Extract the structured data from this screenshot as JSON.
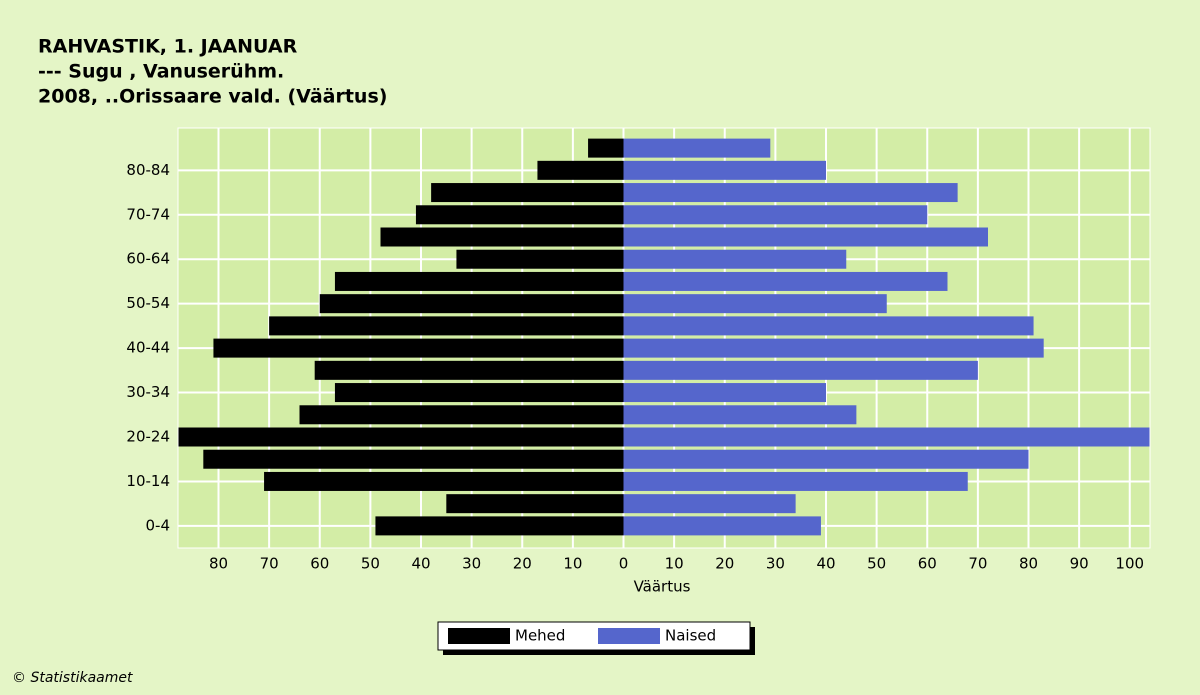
{
  "chart_data": {
    "type": "bar",
    "orientation": "horizontal",
    "title": [
      "RAHVASTIK, 1. JAANUAR",
      "--- Sugu , Vanuserühm.",
      "2008, ..Orissaare vald. (Väärtus)"
    ],
    "x_label": "Väärtus",
    "source": "© Statistikaamet",
    "categories": [
      "0-4",
      null,
      "10-14",
      null,
      "20-24",
      null,
      "30-34",
      null,
      "40-44",
      null,
      "50-54",
      null,
      "60-64",
      null,
      "70-74",
      null,
      "80-84",
      null
    ],
    "series": [
      {
        "name": "Mehed",
        "color": "#000000",
        "values": [
          -49,
          -35,
          -71,
          -83,
          -88,
          -64,
          -57,
          -61,
          -81,
          -70,
          -60,
          -57,
          -33,
          -48,
          -41,
          -38,
          -17,
          -7
        ]
      },
      {
        "name": "Naised",
        "color": "#5566cc",
        "values": [
          39,
          34,
          68,
          80,
          104,
          46,
          40,
          70,
          83,
          81,
          52,
          64,
          44,
          72,
          60,
          66,
          40,
          29
        ]
      }
    ],
    "xlim": [
      -88,
      104
    ],
    "xticks": [
      {
        "value": -80,
        "label": "80"
      },
      {
        "value": -70,
        "label": "70"
      },
      {
        "value": -60,
        "label": "60"
      },
      {
        "value": -50,
        "label": "50"
      },
      {
        "value": -40,
        "label": "40"
      },
      {
        "value": -30,
        "label": "30"
      },
      {
        "value": -20,
        "label": "20"
      },
      {
        "value": -10,
        "label": "10"
      },
      0,
      10,
      20,
      30,
      40,
      50,
      60,
      70,
      80,
      90,
      100
    ],
    "grid": true,
    "legend": "bottom"
  }
}
